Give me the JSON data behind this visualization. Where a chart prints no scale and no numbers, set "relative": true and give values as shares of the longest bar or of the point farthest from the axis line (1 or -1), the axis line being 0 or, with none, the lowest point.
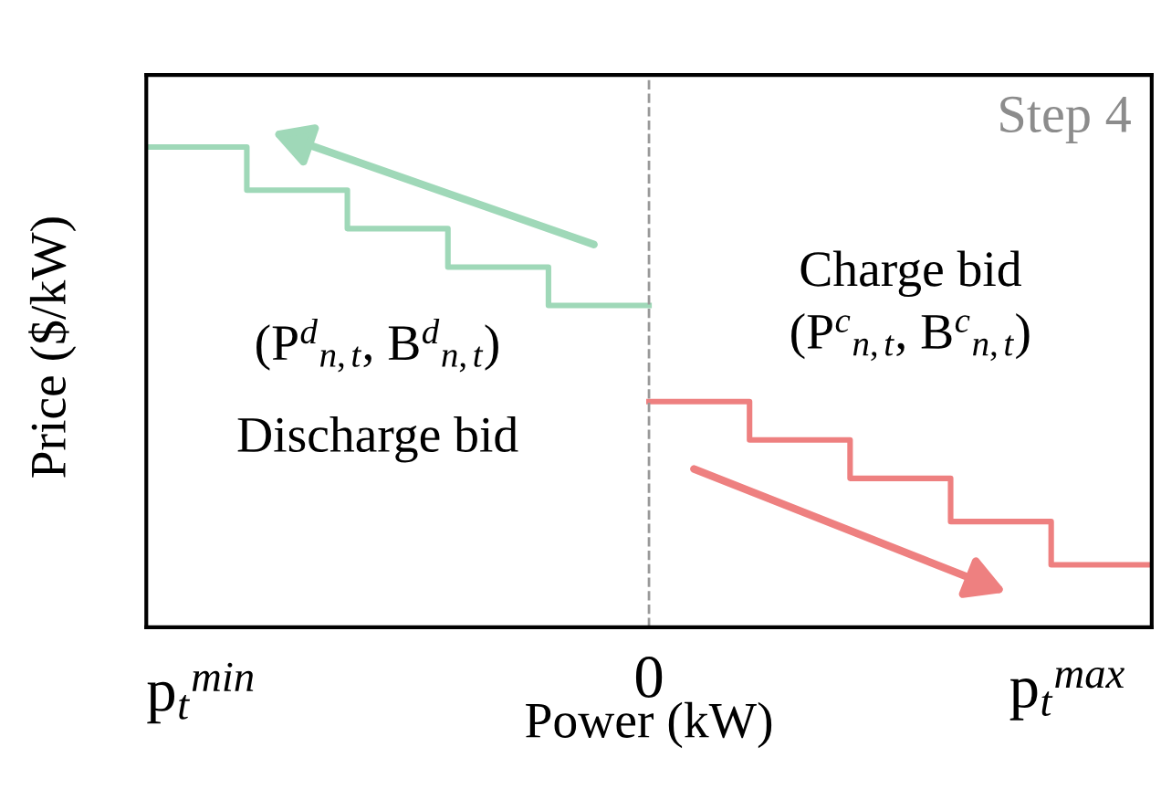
{
  "chart_data": {
    "type": "step",
    "relative": true,
    "xlabel": "Power (kW)",
    "ylabel": "Price ($/kW)",
    "categories": [
      null,
      null,
      null,
      null,
      null,
      null,
      null,
      null,
      null,
      null,
      null
    ],
    "series": [
      {
        "name": "Discharge bid",
        "color": "#9fd8b8",
        "values": [
          1,
          0.91,
          0.83,
          0.75,
          0.67,
          0.67,
          null,
          null,
          null,
          null,
          null
        ]
      },
      {
        "name": "Charge bid",
        "color": "#ee8080",
        "values": [
          null,
          null,
          null,
          null,
          null,
          0.47,
          0.39,
          0.31,
          0.22,
          0.13,
          0.13
        ]
      }
    ],
    "ref_lines": [
      {
        "axis": "x",
        "label": null,
        "color": "#999999",
        "line_style": "dashed"
      }
    ],
    "annotations": [
      "Step 4",
      "(P$^{d}$$_{n,t}$, B$^{d}$$_{n,t}$)",
      "(P$^{c}$$_{n,t}$, B$^{c}$$_{n,t}$)",
      "p$_{t}$$^{min}$",
      "0",
      "p$_{t}$$^{max}$"
    ]
  }
}
